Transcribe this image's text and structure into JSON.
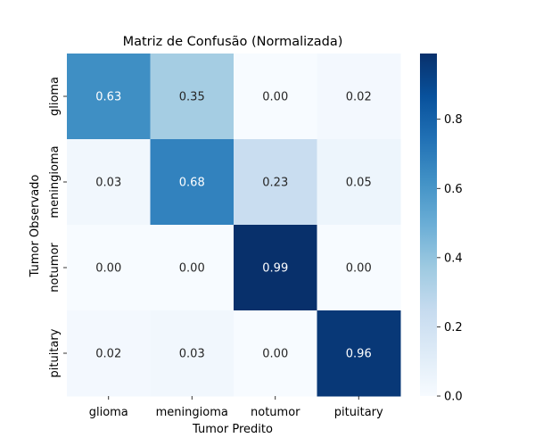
{
  "chart_data": {
    "type": "heatmap",
    "title": "Matriz de Confusão (Normalizada)",
    "xlabel": "Tumor Predito",
    "ylabel": "Tumor Observado",
    "x_categories": [
      "glioma",
      "meningioma",
      "notumor",
      "pituitary"
    ],
    "y_categories": [
      "glioma",
      "meningioma",
      "notumor",
      "pituitary"
    ],
    "values": [
      [
        0.63,
        0.35,
        0.0,
        0.02
      ],
      [
        0.03,
        0.68,
        0.23,
        0.05
      ],
      [
        0.0,
        0.0,
        0.99,
        0.0
      ],
      [
        0.02,
        0.03,
        0.0,
        0.96
      ]
    ],
    "value_format": "0.00",
    "colorbar": {
      "min": 0.0,
      "max": 0.99,
      "ticks": [
        0.0,
        0.2,
        0.4,
        0.6,
        0.8
      ],
      "tick_labels": [
        "0.0",
        "0.2",
        "0.4",
        "0.6",
        "0.8"
      ]
    },
    "colormap": "Blues",
    "grid": false,
    "legend": "colorbar-right"
  }
}
